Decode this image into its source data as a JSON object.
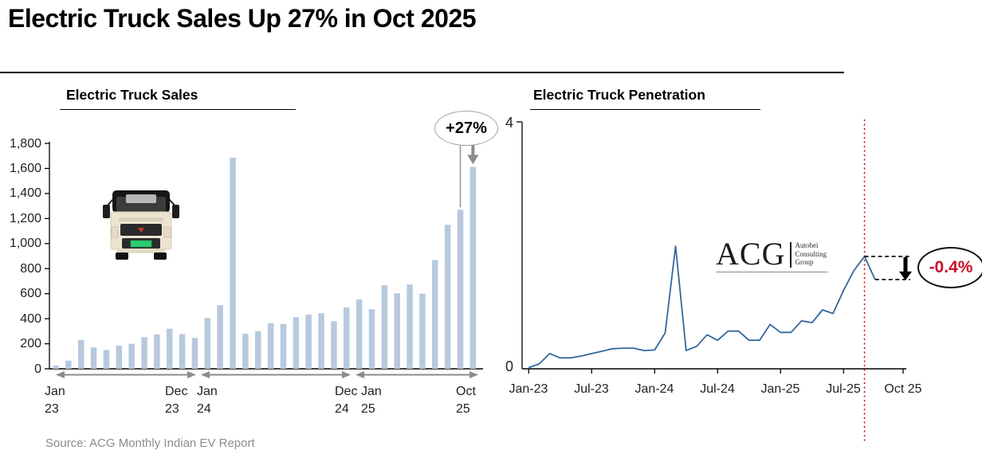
{
  "header": {
    "title": "Electric Truck Sales Up 27% in Oct 2025"
  },
  "source": "Source: ACG Monthly Indian EV Report",
  "logo": {
    "name": "ACG",
    "sub_lines": [
      "Autobei",
      "Consulting",
      "Group"
    ]
  },
  "colors": {
    "bar": "#b8c9de",
    "line": "#31689b",
    "reference_line": "#e00000",
    "negative": "#c8102e",
    "arrow_gray": "#8c8c8c"
  },
  "chart_data": [
    {
      "type": "bar",
      "title": "Electric Truck Sales",
      "ylim": [
        0,
        1800
      ],
      "ytick_labels": [
        "0",
        "200",
        "400",
        "600",
        "800",
        "1,000",
        "1,200",
        "1,400",
        "1,600",
        "1,800"
      ],
      "categories": [
        "Jan-23",
        "Feb-23",
        "Mar-23",
        "Apr-23",
        "May-23",
        "Jun-23",
        "Jul-23",
        "Aug-23",
        "Sep-23",
        "Oct-23",
        "Nov-23",
        "Dec-23",
        "Jan-24",
        "Feb-24",
        "Mar-24",
        "Apr-24",
        "May-24",
        "Jun-24",
        "Jul-24",
        "Aug-24",
        "Sep-24",
        "Oct-24",
        "Nov-24",
        "Dec-24",
        "Jan-25",
        "Feb-25",
        "Mar-25",
        "Apr-25",
        "May-25",
        "Jun-25",
        "Jul-25",
        "Aug-25",
        "Sep-25",
        "Oct-25"
      ],
      "values": [
        25,
        65,
        230,
        170,
        150,
        185,
        200,
        253,
        275,
        320,
        278,
        246,
        406,
        508,
        1686,
        280,
        300,
        363,
        359,
        412,
        433,
        444,
        380,
        490,
        554,
        476,
        667,
        603,
        673,
        600,
        868,
        1150,
        1270,
        1613
      ],
      "x_axis_marks": [
        {
          "month": "Jan",
          "year": "23",
          "index": 0
        },
        {
          "month": "Dec",
          "year": "23",
          "index": 11
        },
        {
          "month": "Jan",
          "year": "24",
          "index": 12
        },
        {
          "month": "Dec",
          "year": "24",
          "index": 23
        },
        {
          "month": "Jan",
          "year": "25",
          "index": 24
        },
        {
          "month": "Oct",
          "year": "25",
          "index": 33
        }
      ],
      "range_arrows": [
        [
          0,
          11
        ],
        [
          12,
          23
        ],
        [
          24,
          33
        ]
      ],
      "annotation": {
        "label": "+27%",
        "line_index": 32,
        "arrow_index": 33
      }
    },
    {
      "type": "line",
      "title": "Electric Truck Penetration",
      "ylim": [
        0,
        4
      ],
      "ytick_labels": [
        "0",
        "4"
      ],
      "x": [
        "Jan-23",
        "Feb-23",
        "Mar-23",
        "Apr-23",
        "May-23",
        "Jun-23",
        "Jul-23",
        "Aug-23",
        "Sep-23",
        "Oct-23",
        "Nov-23",
        "Dec-23",
        "Jan-24",
        "Feb-24",
        "Mar-24",
        "Apr-24",
        "May-24",
        "Jun-24",
        "Jul-24",
        "Aug-24",
        "Sep-24",
        "Oct-24",
        "Nov-24",
        "Dec-24",
        "Jan-25",
        "Feb-25",
        "Mar-25",
        "Apr-25",
        "May-25",
        "Jun-25",
        "Jul-25",
        "Aug-25",
        "Sep-25",
        "Oct-25"
      ],
      "values": [
        0.02,
        0.08,
        0.25,
        0.18,
        0.18,
        0.21,
        0.25,
        0.29,
        0.33,
        0.34,
        0.34,
        0.3,
        0.31,
        0.59,
        2.02,
        0.3,
        0.37,
        0.56,
        0.47,
        0.62,
        0.62,
        0.47,
        0.47,
        0.73,
        0.6,
        0.6,
        0.79,
        0.76,
        0.97,
        0.91,
        1.29,
        1.62,
        1.85,
        1.47
      ],
      "xtick_labels": [
        "Jan-23",
        "Jul-23",
        "Jan-24",
        "Jul-24",
        "Jan-25",
        "Jul-25",
        "Oct 25"
      ],
      "reference_line_index": 32,
      "annotation": {
        "label": "-0.4%",
        "from_index": 32,
        "to_index": 33
      }
    }
  ]
}
